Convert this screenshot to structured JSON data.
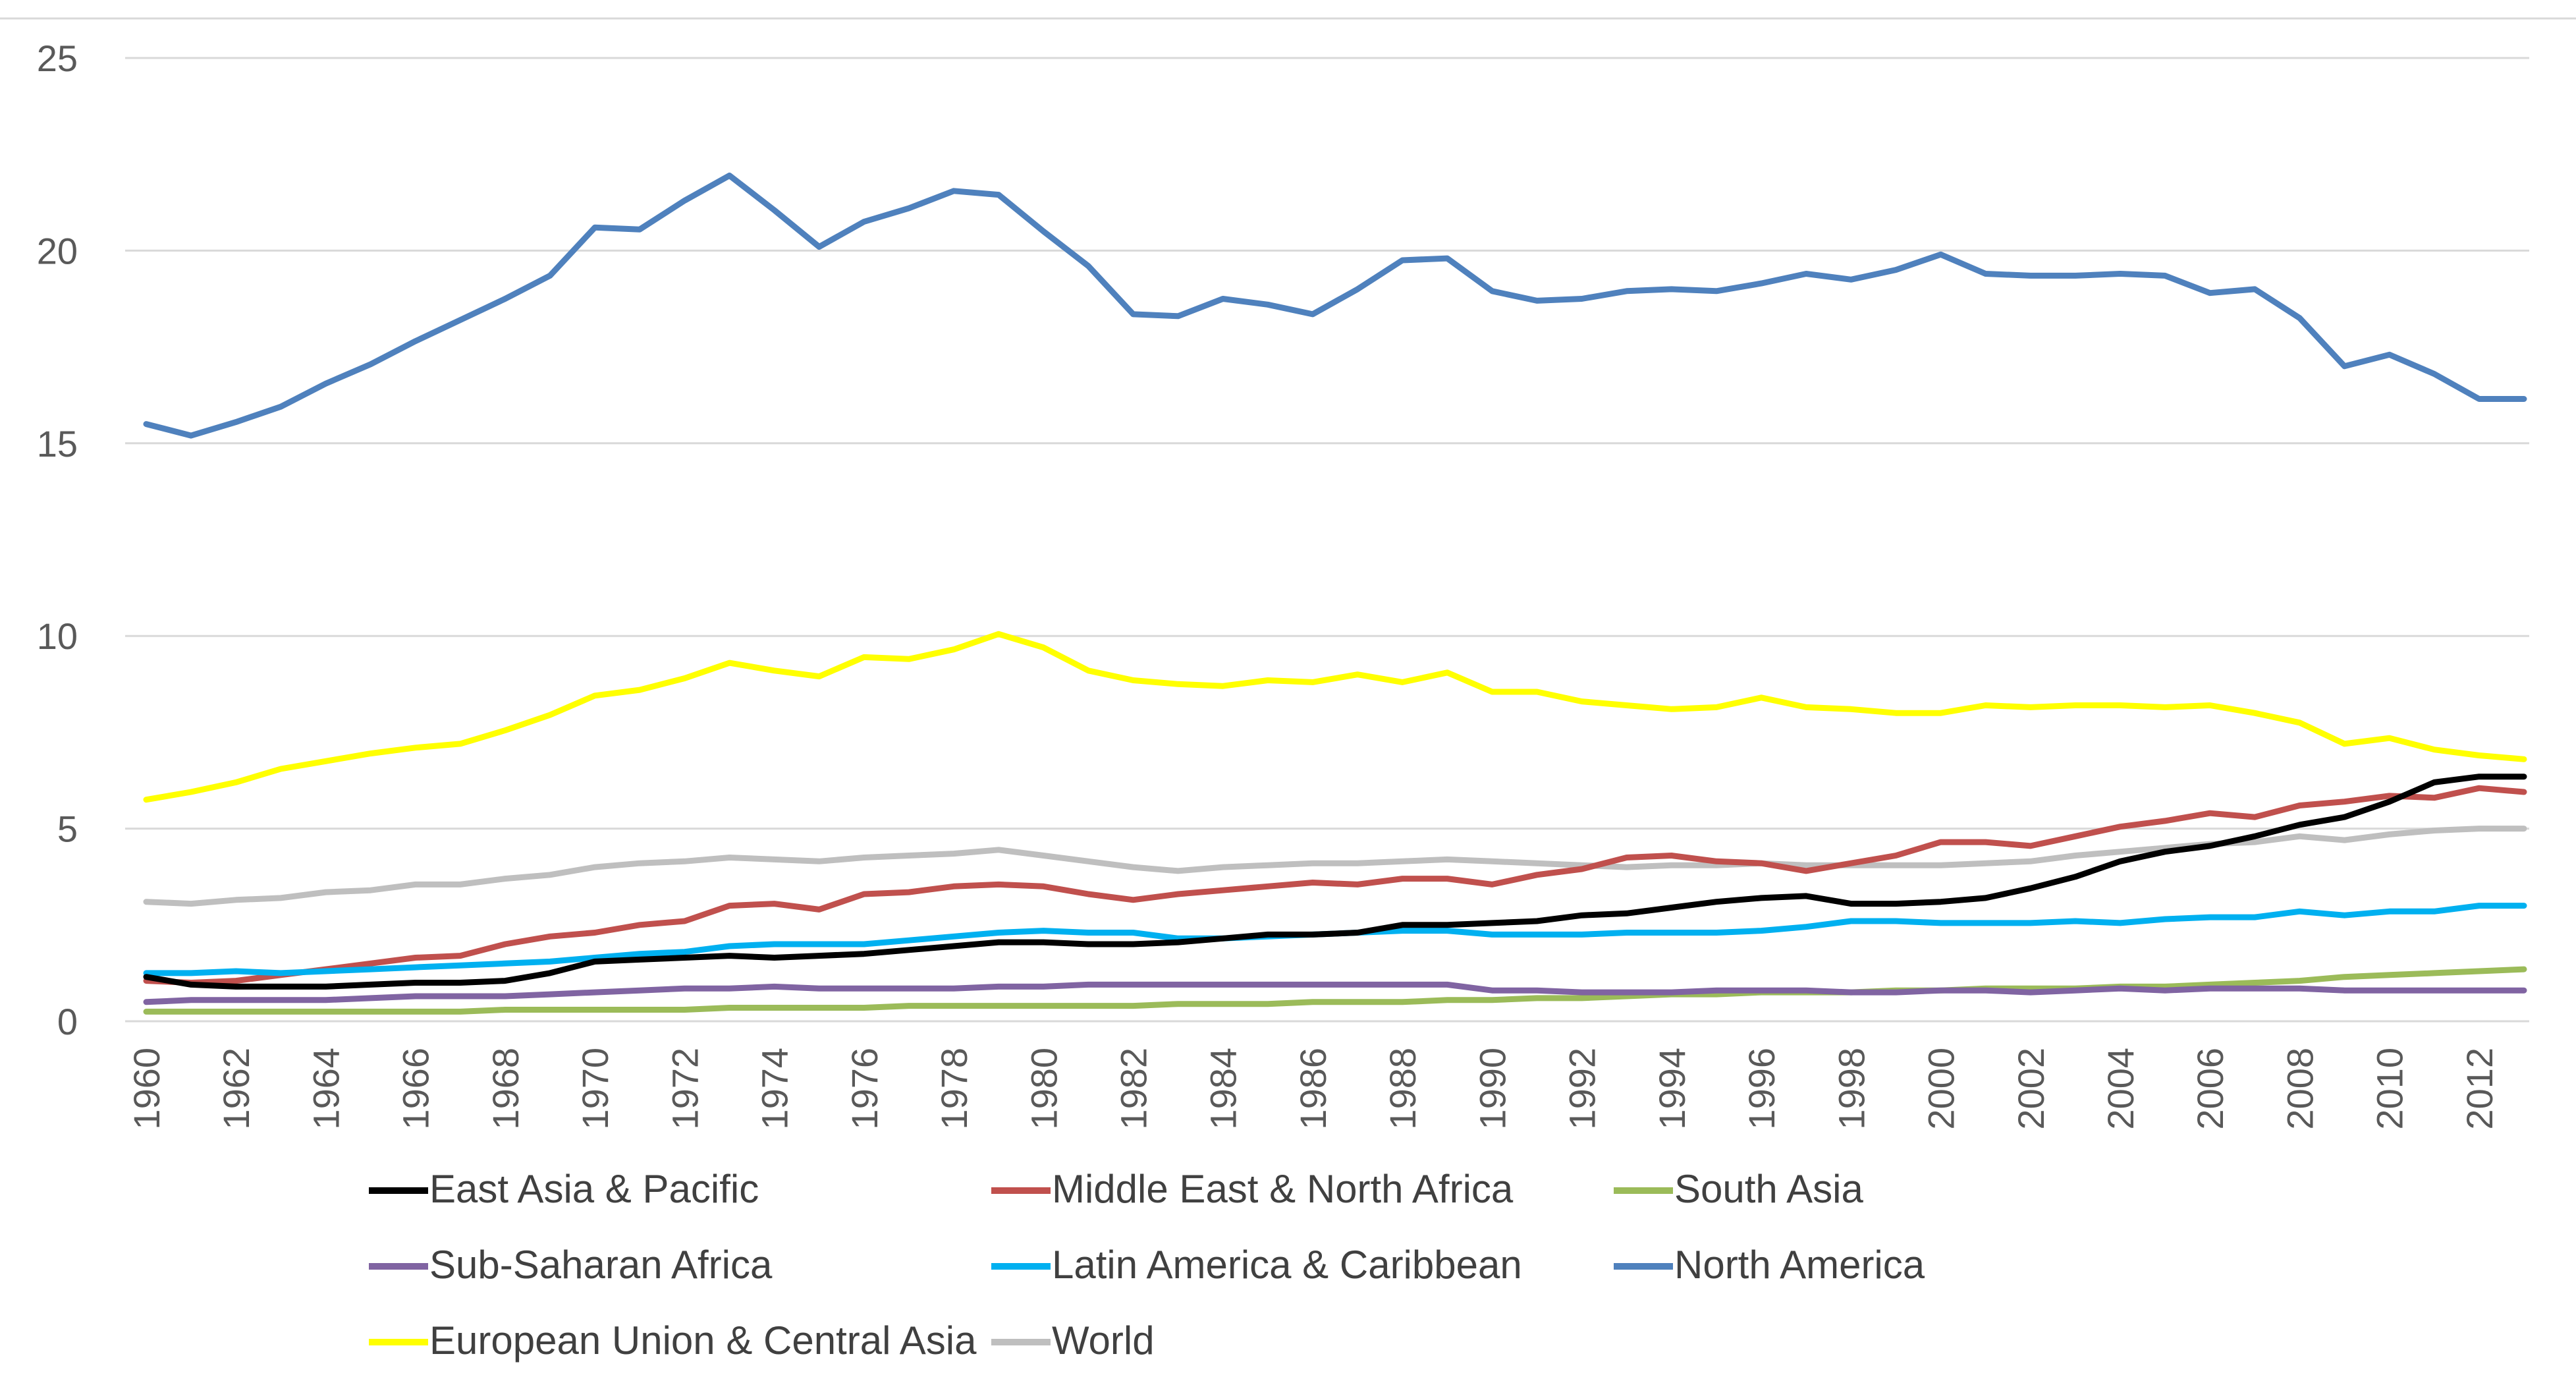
{
  "chart_data": {
    "type": "line",
    "title": "",
    "xlabel": "",
    "ylabel": "",
    "ylim": [
      0,
      25
    ],
    "yticks": [
      0,
      5,
      10,
      15,
      20,
      25
    ],
    "grid": true,
    "legend_position": "bottom",
    "x": [
      1960,
      1961,
      1962,
      1963,
      1964,
      1965,
      1966,
      1967,
      1968,
      1969,
      1970,
      1971,
      1972,
      1973,
      1974,
      1975,
      1976,
      1977,
      1978,
      1979,
      1980,
      1981,
      1982,
      1983,
      1984,
      1985,
      1986,
      1987,
      1988,
      1989,
      1990,
      1991,
      1992,
      1993,
      1994,
      1995,
      1996,
      1997,
      1998,
      1999,
      2000,
      2001,
      2002,
      2003,
      2004,
      2005,
      2006,
      2007,
      2008,
      2009,
      2010,
      2011,
      2012,
      2013
    ],
    "xtick_labels": [
      "1960",
      "1962",
      "1964",
      "1966",
      "1968",
      "1970",
      "1972",
      "1974",
      "1976",
      "1978",
      "1980",
      "1982",
      "1984",
      "1986",
      "1988",
      "1990",
      "1992",
      "1994",
      "1996",
      "1998",
      "2000",
      "2002",
      "2004",
      "2006",
      "2008",
      "2010",
      "2012"
    ],
    "series": [
      {
        "name": "East Asia & Pacific",
        "color": "#000000",
        "values": [
          1.15,
          0.95,
          0.9,
          0.9,
          0.9,
          0.95,
          1.0,
          1.0,
          1.05,
          1.25,
          1.55,
          1.6,
          1.65,
          1.7,
          1.65,
          1.7,
          1.75,
          1.85,
          1.95,
          2.05,
          2.05,
          2.0,
          2.0,
          2.05,
          2.15,
          2.25,
          2.25,
          2.3,
          2.5,
          2.5,
          2.55,
          2.6,
          2.75,
          2.8,
          2.95,
          3.1,
          3.2,
          3.25,
          3.05,
          3.05,
          3.1,
          3.2,
          3.45,
          3.75,
          4.15,
          4.4,
          4.55,
          4.8,
          5.1,
          5.3,
          5.7,
          6.2,
          6.35,
          6.35
        ]
      },
      {
        "name": "Middle East & North Africa",
        "color": "#C0504D",
        "values": [
          1.05,
          1.0,
          1.05,
          1.2,
          1.35,
          1.5,
          1.65,
          1.7,
          2.0,
          2.2,
          2.3,
          2.5,
          2.6,
          3.0,
          3.05,
          2.9,
          3.3,
          3.35,
          3.5,
          3.55,
          3.5,
          3.3,
          3.15,
          3.3,
          3.4,
          3.5,
          3.6,
          3.55,
          3.7,
          3.7,
          3.55,
          3.8,
          3.95,
          4.25,
          4.3,
          4.15,
          4.1,
          3.9,
          4.1,
          4.3,
          4.65,
          4.65,
          4.55,
          4.8,
          5.05,
          5.2,
          5.4,
          5.3,
          5.6,
          5.7,
          5.85,
          5.8,
          6.05,
          5.95
        ]
      },
      {
        "name": "South Asia",
        "color": "#9BBB59",
        "values": [
          0.25,
          0.25,
          0.25,
          0.25,
          0.25,
          0.25,
          0.25,
          0.25,
          0.3,
          0.3,
          0.3,
          0.3,
          0.3,
          0.35,
          0.35,
          0.35,
          0.35,
          0.4,
          0.4,
          0.4,
          0.4,
          0.4,
          0.4,
          0.45,
          0.45,
          0.45,
          0.5,
          0.5,
          0.5,
          0.55,
          0.55,
          0.6,
          0.6,
          0.65,
          0.7,
          0.7,
          0.75,
          0.75,
          0.75,
          0.8,
          0.8,
          0.85,
          0.85,
          0.85,
          0.9,
          0.9,
          0.95,
          1.0,
          1.05,
          1.15,
          1.2,
          1.25,
          1.3,
          1.35
        ]
      },
      {
        "name": "Sub-Saharan Africa",
        "color": "#8064A2",
        "values": [
          0.5,
          0.55,
          0.55,
          0.55,
          0.55,
          0.6,
          0.65,
          0.65,
          0.65,
          0.7,
          0.75,
          0.8,
          0.85,
          0.85,
          0.9,
          0.85,
          0.85,
          0.85,
          0.85,
          0.9,
          0.9,
          0.95,
          0.95,
          0.95,
          0.95,
          0.95,
          0.95,
          0.95,
          0.95,
          0.95,
          0.8,
          0.8,
          0.75,
          0.75,
          0.75,
          0.8,
          0.8,
          0.8,
          0.75,
          0.75,
          0.8,
          0.8,
          0.75,
          0.8,
          0.85,
          0.8,
          0.85,
          0.85,
          0.85,
          0.8,
          0.8,
          0.8,
          0.8,
          0.8
        ]
      },
      {
        "name": "Latin America & Caribbean",
        "color": "#00B0F0",
        "values": [
          1.25,
          1.25,
          1.3,
          1.25,
          1.3,
          1.35,
          1.4,
          1.45,
          1.5,
          1.55,
          1.65,
          1.75,
          1.8,
          1.95,
          2.0,
          2.0,
          2.0,
          2.1,
          2.2,
          2.3,
          2.35,
          2.3,
          2.3,
          2.15,
          2.15,
          2.2,
          2.25,
          2.3,
          2.35,
          2.35,
          2.25,
          2.25,
          2.25,
          2.3,
          2.3,
          2.3,
          2.35,
          2.45,
          2.6,
          2.6,
          2.55,
          2.55,
          2.55,
          2.6,
          2.55,
          2.65,
          2.7,
          2.7,
          2.85,
          2.75,
          2.85,
          2.85,
          3.0,
          3.0
        ]
      },
      {
        "name": "North America",
        "color": "#4F81BD",
        "values": [
          15.5,
          15.2,
          15.55,
          15.95,
          16.55,
          17.05,
          17.65,
          18.2,
          18.75,
          19.35,
          20.6,
          20.55,
          21.3,
          21.95,
          21.05,
          20.1,
          20.75,
          21.1,
          21.55,
          21.45,
          20.5,
          19.6,
          18.35,
          18.3,
          18.75,
          18.6,
          18.35,
          19.0,
          19.75,
          19.8,
          18.95,
          18.7,
          18.75,
          18.95,
          19.0,
          18.95,
          19.15,
          19.4,
          19.25,
          19.5,
          19.9,
          19.4,
          19.35,
          19.35,
          19.4,
          19.35,
          18.9,
          19.0,
          18.25,
          17.0,
          17.3,
          16.8,
          16.15,
          16.15
        ]
      },
      {
        "name": "European Union & Central Asia",
        "color": "#FFFF00",
        "values": [
          5.75,
          5.95,
          6.2,
          6.55,
          6.75,
          6.95,
          7.1,
          7.2,
          7.55,
          7.95,
          8.45,
          8.6,
          8.9,
          9.3,
          9.1,
          8.95,
          9.45,
          9.4,
          9.65,
          10.05,
          9.7,
          9.1,
          8.85,
          8.75,
          8.7,
          8.85,
          8.8,
          9.0,
          8.8,
          9.05,
          8.55,
          8.55,
          8.3,
          8.2,
          8.1,
          8.15,
          8.4,
          8.15,
          8.1,
          8.0,
          8.0,
          8.2,
          8.15,
          8.2,
          8.2,
          8.15,
          8.2,
          8.0,
          7.75,
          7.2,
          7.35,
          7.05,
          6.9,
          6.8
        ]
      },
      {
        "name": "World",
        "color": "#BFBFBF",
        "values": [
          3.1,
          3.05,
          3.15,
          3.2,
          3.35,
          3.4,
          3.55,
          3.55,
          3.7,
          3.8,
          4.0,
          4.1,
          4.15,
          4.25,
          4.2,
          4.15,
          4.25,
          4.3,
          4.35,
          4.45,
          4.3,
          4.15,
          4.0,
          3.9,
          4.0,
          4.05,
          4.1,
          4.1,
          4.15,
          4.2,
          4.15,
          4.1,
          4.05,
          4.0,
          4.05,
          4.05,
          4.1,
          4.05,
          4.05,
          4.05,
          4.05,
          4.1,
          4.15,
          4.3,
          4.4,
          4.5,
          4.6,
          4.65,
          4.8,
          4.7,
          4.85,
          4.95,
          5.0,
          5.0
        ]
      }
    ]
  }
}
